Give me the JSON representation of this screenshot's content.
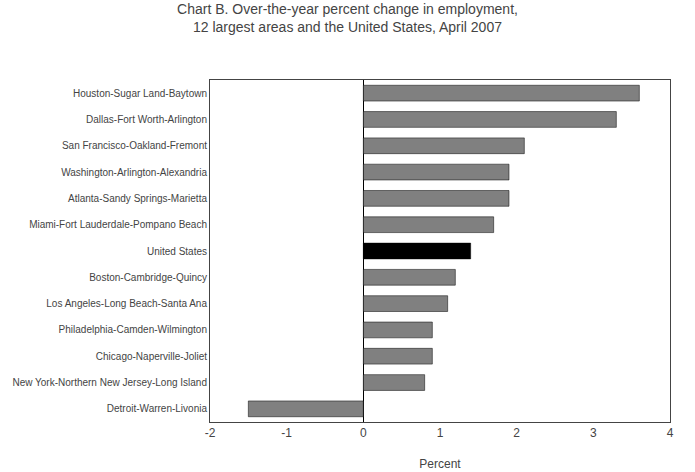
{
  "chart_data": {
    "type": "bar",
    "orientation": "horizontal",
    "title": "Chart B. Over-the-year percent change in employment,\n12 largest areas and the United States, April 2007",
    "xlabel": "Percent",
    "categories": [
      "Houston-Sugar Land-Baytown",
      "Dallas-Fort Worth-Arlington",
      "San Francisco-Oakland-Fremont",
      "Washington-Arlington-Alexandria",
      "Atlanta-Sandy Springs-Marietta",
      "Miami-Fort Lauderdale-Pompano Beach",
      "United States",
      "Boston-Cambridge-Quincy",
      "Los Angeles-Long Beach-Santa Ana",
      "Philadelphia-Camden-Wilmington",
      "Chicago-Naperville-Joliet",
      "New York-Northern New Jersey-Long Island",
      "Detroit-Warren-Livonia"
    ],
    "values": [
      3.6,
      3.3,
      2.1,
      1.9,
      1.9,
      1.7,
      1.4,
      1.2,
      1.1,
      0.9,
      0.9,
      0.8,
      -1.5
    ],
    "colors": [
      "#808080",
      "#808080",
      "#808080",
      "#808080",
      "#808080",
      "#808080",
      "#000000",
      "#808080",
      "#808080",
      "#808080",
      "#808080",
      "#808080",
      "#808080"
    ],
    "xlim": [
      -2,
      4
    ],
    "xticks": [
      -2,
      -1,
      0,
      1,
      2,
      3,
      4
    ],
    "grid": false
  }
}
